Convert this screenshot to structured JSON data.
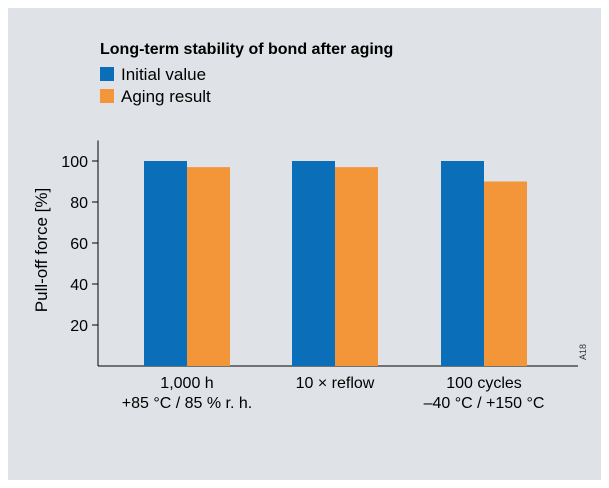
{
  "chart_data": {
    "type": "bar",
    "title": "Long-term stability of bond after aging",
    "ylabel": "Pull-off force [%]",
    "xlabel": "",
    "ylim": [
      0,
      110
    ],
    "yticks": [
      20,
      40,
      60,
      80,
      100
    ],
    "categories": [
      [
        "1,000 h",
        "+85 °C / 85 % r. h."
      ],
      [
        "10 × reflow"
      ],
      [
        "100 cycles",
        "–40 °C / +150 °C"
      ]
    ],
    "series": [
      {
        "name": "Initial value",
        "color": "#0a6fb8",
        "values": [
          100,
          100,
          100
        ]
      },
      {
        "name": "Aging result",
        "color": "#f39539",
        "values": [
          97,
          97,
          90
        ]
      }
    ],
    "legend_position": "top-left",
    "grid": false,
    "figure_code": "A18"
  }
}
